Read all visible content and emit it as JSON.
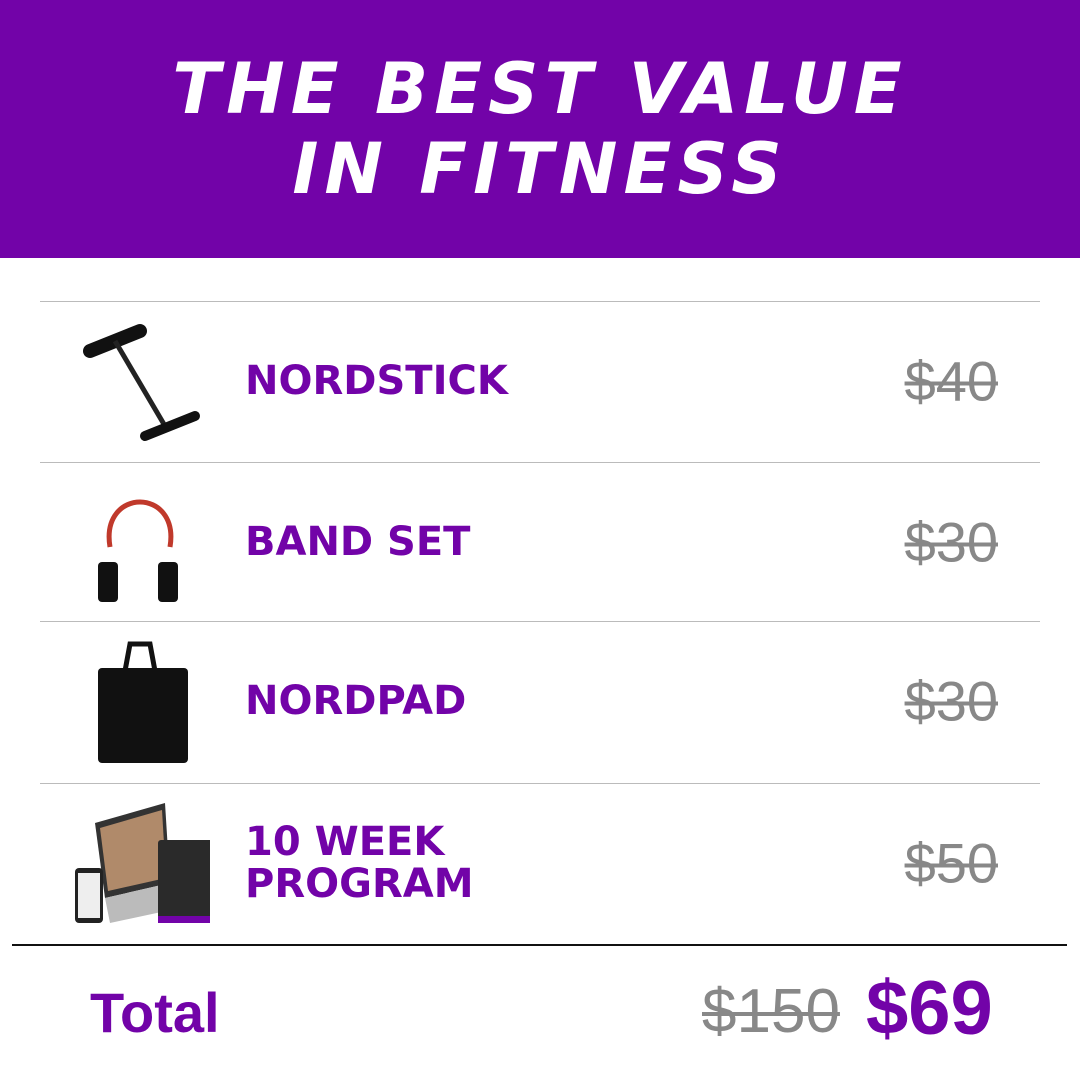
{
  "header": {
    "line1": "THE BEST VALUE",
    "line2": "IN FITNESS"
  },
  "items": [
    {
      "name": "NORDSTICK",
      "price": "$40",
      "icon": "nordstick-product-image"
    },
    {
      "name": "BAND SET",
      "price": "$30",
      "icon": "band-set-product-image"
    },
    {
      "name": "NORDPAD",
      "price": "$30",
      "icon": "nordpad-product-image"
    },
    {
      "name": "10 WEEK PROGRAM",
      "price": "$50",
      "icon": "program-devices-image"
    }
  ],
  "total": {
    "label": "Total",
    "original": "$150",
    "price": "$69"
  },
  "colors": {
    "brand": "#7203a8",
    "strikethrough": "#888888"
  }
}
